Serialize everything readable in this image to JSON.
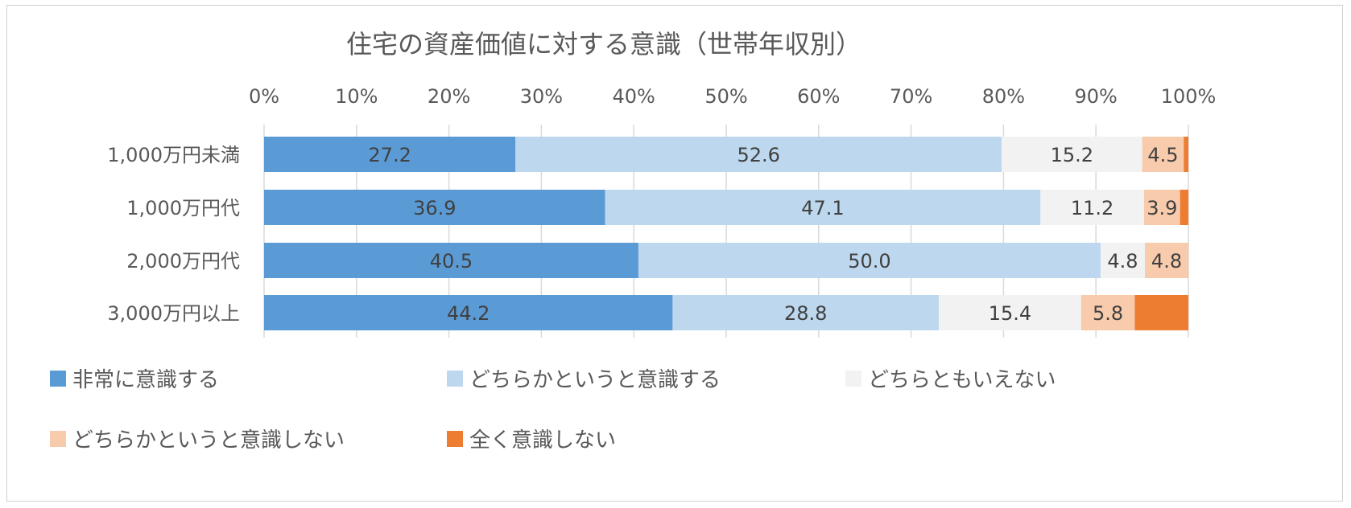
{
  "chart_data": {
    "type": "bar",
    "orientation": "horizontal",
    "stacked": "percent",
    "title": "住宅の資産価値に対する意識（世帯年収別）",
    "categories": [
      "1,000万円未満",
      "1,000万円代",
      "2,000万円代",
      "3,000万円以上"
    ],
    "xlim": [
      0,
      100
    ],
    "x_ticks": [
      "0%",
      "10%",
      "20%",
      "30%",
      "40%",
      "50%",
      "60%",
      "70%",
      "80%",
      "90%",
      "100%"
    ],
    "grid": true,
    "legend_position": "bottom",
    "series": [
      {
        "name": "非常に意識する",
        "color": "#5b9bd5",
        "values": [
          27.2,
          36.9,
          40.5,
          44.2
        ],
        "labels": [
          "27.2",
          "36.9",
          "40.5",
          "44.2"
        ]
      },
      {
        "name": "どちらかというと意識する",
        "color": "#bdd7ee",
        "values": [
          52.6,
          47.1,
          50.0,
          28.8
        ],
        "labels": [
          "52.6",
          "47.1",
          "50.0",
          "28.8"
        ]
      },
      {
        "name": "どちらともいえない",
        "color": "#f2f2f2",
        "values": [
          15.2,
          11.2,
          4.8,
          15.4
        ],
        "labels": [
          "15.2",
          "11.2",
          "4.8",
          "15.4"
        ]
      },
      {
        "name": "どちらかというと意識しない",
        "color": "#f8cbad",
        "values": [
          4.5,
          3.9,
          4.8,
          5.8
        ],
        "labels": [
          "4.5",
          "3.9",
          "4.8",
          "5.8"
        ]
      },
      {
        "name": "全く意識しない",
        "color": "#ed7d31",
        "values": [
          0.5,
          0.9,
          0,
          5.8
        ],
        "labels": [
          "",
          "",
          "",
          ""
        ]
      }
    ]
  }
}
